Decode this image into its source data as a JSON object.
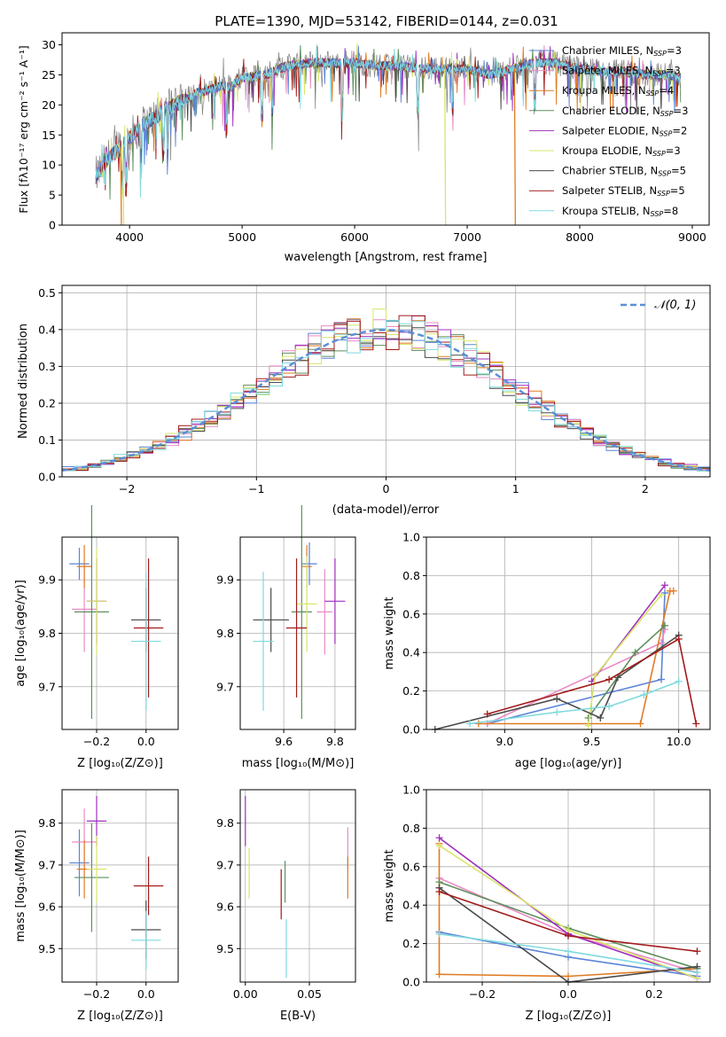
{
  "colors": {
    "chabrier_miles": "#5b84d6",
    "salpeter_miles": "#e98bc4",
    "kroupa_miles": "#e07b22",
    "chabrier_elodie": "#5e8f5e",
    "salpeter_elodie": "#a02fbf",
    "kroupa_elodie": "#d9e56a",
    "chabrier_stelib": "#4a4a4a",
    "salpeter_stelib": "#a31a1a",
    "kroupa_stelib": "#7fd9de"
  },
  "chart_data": [
    {
      "id": "spectrum",
      "type": "line",
      "title": "PLATE=1390, MJD=53142, FIBERID=0144, z=0.031",
      "xlabel": "wavelength [Angstrom, rest frame]",
      "ylabel": "Flux [fλ10⁻¹⁷ erg cm⁻² s⁻¹ A⁻¹]",
      "xlim": [
        3400,
        9150
      ],
      "ylim": [
        0,
        32
      ],
      "xticks": [
        "4000",
        "5000",
        "6000",
        "7000",
        "8000",
        "9000"
      ],
      "yticks": [
        "0",
        "5",
        "10",
        "15",
        "20",
        "25",
        "30"
      ],
      "legend_position": "top-right",
      "legend": [
        {
          "label": "Chabrier MILES, N",
          "sub": "SSP",
          "val": "=3",
          "color": "#5b84d6"
        },
        {
          "label": "Salpeter MILES, N",
          "sub": "SSP",
          "val": "=3",
          "color": "#e98bc4"
        },
        {
          "label": "Kroupa MILES, N",
          "sub": "SSP",
          "val": "=4",
          "color": "#e07b22"
        },
        {
          "label": "Chabrier ELODIE, N",
          "sub": "SSP",
          "val": "=3",
          "color": "#5e8f5e"
        },
        {
          "label": "Salpeter ELODIE, N",
          "sub": "SSP",
          "val": "=2",
          "color": "#a02fbf"
        },
        {
          "label": "Kroupa ELODIE, N",
          "sub": "SSP",
          "val": "=3",
          "color": "#d9e56a"
        },
        {
          "label": "Chabrier STELIB, N",
          "sub": "SSP",
          "val": "=5",
          "color": "#4a4a4a"
        },
        {
          "label": "Salpeter STELIB, N",
          "sub": "SSP",
          "val": "=5",
          "color": "#a31a1a"
        },
        {
          "label": "Kroupa STELIB, N",
          "sub": "SSP",
          "val": "=8",
          "color": "#7fd9de"
        }
      ],
      "continuum": [
        [
          3700,
          8
        ],
        [
          3800,
          11
        ],
        [
          3900,
          12.5
        ],
        [
          4000,
          14.5
        ],
        [
          4100,
          16.5
        ],
        [
          4200,
          17.5
        ],
        [
          4300,
          19
        ],
        [
          4400,
          20
        ],
        [
          4500,
          21
        ],
        [
          4600,
          22
        ],
        [
          4700,
          22.5
        ],
        [
          4800,
          23
        ],
        [
          4900,
          23
        ],
        [
          5000,
          24.5
        ],
        [
          5200,
          25
        ],
        [
          5400,
          26.5
        ],
        [
          5600,
          27
        ],
        [
          5800,
          27
        ],
        [
          6000,
          27
        ],
        [
          6200,
          26.5
        ],
        [
          6400,
          26.5
        ],
        [
          6600,
          26
        ],
        [
          6800,
          26
        ],
        [
          7000,
          26
        ],
        [
          7200,
          25
        ],
        [
          7400,
          26
        ],
        [
          7600,
          27
        ],
        [
          7800,
          27
        ],
        [
          8000,
          26
        ],
        [
          8200,
          25.5
        ],
        [
          8400,
          25.5
        ],
        [
          8600,
          25
        ],
        [
          8800,
          25
        ],
        [
          8900,
          24.5
        ]
      ],
      "drops": [
        [
          3920,
          "#e07b22"
        ],
        [
          3940,
          "#d9e56a"
        ],
        [
          6800,
          "#d9e56a"
        ],
        [
          7420,
          "#e07b22"
        ]
      ]
    },
    {
      "id": "residuals",
      "type": "step",
      "xlabel": "(data-model)/error",
      "ylabel": "Normed distribution",
      "xlim": [
        -2.5,
        2.5
      ],
      "ylim": [
        0,
        0.52
      ],
      "xticks": [
        "−2",
        "−1",
        "0",
        "1",
        "2"
      ],
      "yticks": [
        "0.0",
        "0.1",
        "0.2",
        "0.3",
        "0.4",
        "0.5"
      ],
      "legend_label": "𝒩(0, 1)",
      "legend_position": "top-right",
      "bin_width": 0.1,
      "gaussian": {
        "mu": 0,
        "sigma": 1
      }
    },
    {
      "id": "age-vs-z",
      "type": "errorbar",
      "xlabel": "Z [log₁₀(Z/Z⊙)]",
      "ylabel": "age  [log₁₀(age/yr)]",
      "xlim": [
        -0.34,
        0.13
      ],
      "ylim": [
        9.62,
        9.98
      ],
      "xticks": [
        -0.2,
        0.0
      ],
      "xtick_labels": [
        "−0.2",
        "0.0"
      ],
      "yticks": [
        9.7,
        9.8,
        9.9
      ],
      "ytick_labels": [
        "9.7",
        "9.8",
        "9.9"
      ],
      "points": [
        {
          "color": "#5b84d6",
          "x": -0.27,
          "xe": 0.04,
          "y": 9.93,
          "ye": 0.03
        },
        {
          "color": "#e98bc4",
          "x": -0.25,
          "xe": 0.05,
          "y": 9.845,
          "ye": 0.08
        },
        {
          "color": "#e07b22",
          "x": -0.25,
          "xe": 0.03,
          "y": 9.925,
          "ye": 0.04
        },
        {
          "color": "#5e8f5e",
          "x": -0.22,
          "xe": 0.07,
          "y": 9.84,
          "ye": 0.2
        },
        {
          "color": "#a02fbf",
          "x": -0.2,
          "xe": 0.04,
          "y": 9.86,
          "ye": 0.08
        },
        {
          "color": "#d9e56a",
          "x": -0.2,
          "xe": 0.04,
          "y": 9.86,
          "ye": 0.1
        },
        {
          "color": "#4a4a4a",
          "x": 0.0,
          "xe": 0.06,
          "y": 9.825,
          "ye": 0.06
        },
        {
          "color": "#a31a1a",
          "x": 0.01,
          "xe": 0.06,
          "y": 9.81,
          "ye": 0.13
        },
        {
          "color": "#7fd9de",
          "x": 0.0,
          "xe": 0.06,
          "y": 9.785,
          "ye": 0.13
        }
      ]
    },
    {
      "id": "age-vs-mass",
      "type": "errorbar",
      "xlabel": "mass [log₁₀(M/M⊙)]",
      "ylabel": "",
      "xlim": [
        9.43,
        9.88
      ],
      "ylim": [
        9.62,
        9.98
      ],
      "xticks": [
        9.6,
        9.8
      ],
      "xtick_labels": [
        "9.6",
        "9.8"
      ],
      "yticks": [
        9.7,
        9.8,
        9.9
      ],
      "ytick_labels": [
        "9.7",
        "9.8",
        "9.9"
      ],
      "points": [
        {
          "color": "#5b84d6",
          "x": 9.7,
          "xe": 0.03,
          "y": 9.93,
          "ye": 0.04
        },
        {
          "color": "#e98bc4",
          "x": 9.76,
          "xe": 0.03,
          "y": 9.84,
          "ye": 0.08
        },
        {
          "color": "#e07b22",
          "x": 9.69,
          "xe": 0.02,
          "y": 9.925,
          "ye": 0.04
        },
        {
          "color": "#5e8f5e",
          "x": 9.67,
          "xe": 0.04,
          "y": 9.84,
          "ye": 0.2
        },
        {
          "color": "#a02fbf",
          "x": 9.8,
          "xe": 0.04,
          "y": 9.86,
          "ye": 0.08
        },
        {
          "color": "#d9e56a",
          "x": 9.69,
          "xe": 0.04,
          "y": 9.855,
          "ye": 0.09
        },
        {
          "color": "#4a4a4a",
          "x": 9.55,
          "xe": 0.07,
          "y": 9.825,
          "ye": 0.06
        },
        {
          "color": "#a31a1a",
          "x": 9.65,
          "xe": 0.04,
          "y": 9.81,
          "ye": 0.13
        },
        {
          "color": "#7fd9de",
          "x": 9.52,
          "xe": 0.04,
          "y": 9.785,
          "ye": 0.13
        }
      ]
    },
    {
      "id": "weight-vs-age",
      "type": "line",
      "xlabel": "age  [log₁₀(age/yr)]",
      "ylabel": "mass weight",
      "xlim": [
        8.55,
        10.18
      ],
      "ylim": [
        0,
        1.0
      ],
      "xticks": [
        9.0,
        9.5,
        10.0
      ],
      "xtick_labels": [
        "9.0",
        "9.5",
        "10.0"
      ],
      "yticks": [
        0,
        0.2,
        0.4,
        0.6,
        0.8,
        1.0
      ],
      "ytick_labels": [
        "0.0",
        "0.2",
        "0.4",
        "0.6",
        "0.8",
        "1.0"
      ],
      "series": [
        {
          "color": "#5b84d6",
          "x": [
            8.9,
            9.9,
            9.92
          ],
          "y": [
            0.03,
            0.26,
            0.71
          ]
        },
        {
          "color": "#e98bc4",
          "x": [
            8.9,
            9.9,
            9.92
          ],
          "y": [
            0.03,
            0.45,
            0.52
          ]
        },
        {
          "color": "#e07b22",
          "x": [
            8.85,
            9.78,
            9.95,
            9.97
          ],
          "y": [
            0.03,
            0.03,
            0.72,
            0.72
          ]
        },
        {
          "color": "#5e8f5e",
          "x": [
            9.48,
            9.75,
            9.92
          ],
          "y": [
            0.06,
            0.4,
            0.54
          ]
        },
        {
          "color": "#a02fbf",
          "x": [
            9.5,
            9.92
          ],
          "y": [
            0.25,
            0.75
          ]
        },
        {
          "color": "#d9e56a",
          "x": [
            9.48,
            9.52,
            9.9
          ],
          "y": [
            0.02,
            0.28,
            0.7
          ]
        },
        {
          "color": "#4a4a4a",
          "x": [
            8.6,
            9.3,
            9.55,
            9.65,
            10.0
          ],
          "y": [
            0.0,
            0.16,
            0.06,
            0.27,
            0.49
          ]
        },
        {
          "color": "#a31a1a",
          "x": [
            8.9,
            9.6,
            10.0,
            10.1
          ],
          "y": [
            0.08,
            0.26,
            0.47,
            0.03
          ]
        },
        {
          "color": "#7fd9de",
          "x": [
            8.8,
            9.3,
            9.6,
            9.8,
            10.0
          ],
          "y": [
            0.03,
            0.09,
            0.12,
            0.18,
            0.25
          ]
        }
      ]
    },
    {
      "id": "mass-vs-z",
      "type": "errorbar",
      "xlabel": "Z [log₁₀(Z/Z⊙)]",
      "ylabel": "mass [log₁₀(M/M⊙)]",
      "xlim": [
        -0.34,
        0.13
      ],
      "ylim": [
        9.42,
        9.88
      ],
      "xticks": [
        -0.2,
        0.0
      ],
      "xtick_labels": [
        "−0.2",
        "0.0"
      ],
      "yticks": [
        9.5,
        9.6,
        9.7,
        9.8
      ],
      "ytick_labels": [
        "9.5",
        "9.6",
        "9.7",
        "9.8"
      ],
      "points": [
        {
          "color": "#5b84d6",
          "x": -0.27,
          "xe": 0.04,
          "y": 9.705,
          "ye": 0.08
        },
        {
          "color": "#e98bc4",
          "x": -0.25,
          "xe": 0.05,
          "y": 9.755,
          "ye": 0.08
        },
        {
          "color": "#e07b22",
          "x": -0.25,
          "xe": 0.03,
          "y": 9.69,
          "ye": 0.07
        },
        {
          "color": "#5e8f5e",
          "x": -0.22,
          "xe": 0.07,
          "y": 9.67,
          "ye": 0.13
        },
        {
          "color": "#a02fbf",
          "x": -0.2,
          "xe": 0.04,
          "y": 9.805,
          "ye": 0.06
        },
        {
          "color": "#d9e56a",
          "x": -0.2,
          "xe": 0.04,
          "y": 9.69,
          "ye": 0.08
        },
        {
          "color": "#4a4a4a",
          "x": 0.0,
          "xe": 0.06,
          "y": 9.545,
          "ye": 0.07
        },
        {
          "color": "#a31a1a",
          "x": 0.01,
          "xe": 0.06,
          "y": 9.65,
          "ye": 0.07
        },
        {
          "color": "#7fd9de",
          "x": 0.0,
          "xe": 0.06,
          "y": 9.52,
          "ye": 0.07
        }
      ]
    },
    {
      "id": "mass-vs-ebv",
      "type": "errorbar",
      "xlabel": "E(B-V)",
      "ylabel": "",
      "xlim": [
        -0.004,
        0.086
      ],
      "ylim": [
        9.42,
        9.88
      ],
      "xticks": [
        0.0,
        0.05
      ],
      "xtick_labels": [
        "0.00",
        "0.05"
      ],
      "yticks": [
        9.5,
        9.6,
        9.7,
        9.8
      ],
      "ytick_labels": [
        "9.5",
        "9.6",
        "9.7",
        "9.8"
      ],
      "points": [
        {
          "color": "#a02fbf",
          "x": 0.0,
          "xe": 0,
          "y": 9.805,
          "ye": 0.06
        },
        {
          "color": "#d9e56a",
          "x": 0.003,
          "xe": 0,
          "y": 9.68,
          "ye": 0.06
        },
        {
          "color": "#5e8f5e",
          "x": 0.031,
          "xe": 0,
          "y": 9.66,
          "ye": 0.05
        },
        {
          "color": "#a31a1a",
          "x": 0.028,
          "xe": 0,
          "y": 9.63,
          "ye": 0.06
        },
        {
          "color": "#7fd9de",
          "x": 0.032,
          "xe": 0,
          "y": 9.5,
          "ye": 0.07
        },
        {
          "color": "#e98bc4",
          "x": 0.08,
          "xe": 0,
          "y": 9.74,
          "ye": 0.05
        },
        {
          "color": "#e07b22",
          "x": 0.08,
          "xe": 0,
          "y": 9.67,
          "ye": 0.05
        }
      ]
    },
    {
      "id": "weight-vs-z",
      "type": "line",
      "xlabel": "Z [log₁₀(Z/Z⊙)]",
      "ylabel": "mass weight",
      "xlim": [
        -0.33,
        0.33
      ],
      "ylim": [
        0,
        1.0
      ],
      "xticks": [
        -0.2,
        0.0,
        0.2
      ],
      "xtick_labels": [
        "−0.2",
        "0.0",
        "0.2"
      ],
      "yticks": [
        0,
        0.2,
        0.4,
        0.6,
        0.8,
        1.0
      ],
      "ytick_labels": [
        "0.0",
        "0.2",
        "0.4",
        "0.6",
        "0.8",
        "1.0"
      ],
      "series": [
        {
          "color": "#5b84d6",
          "x": [
            -0.3,
            0.0,
            0.3
          ],
          "y": [
            0.26,
            0.13,
            0.03
          ]
        },
        {
          "color": "#e98bc4",
          "x": [
            -0.3,
            0.0,
            0.3
          ],
          "y": [
            0.54,
            0.25,
            0.05
          ]
        },
        {
          "color": "#e07b22",
          "x": [
            -0.3,
            -0.3,
            0.0,
            0.3
          ],
          "y": [
            0.72,
            0.04,
            0.03,
            0.07
          ]
        },
        {
          "color": "#5e8f5e",
          "x": [
            -0.3,
            0.0,
            0.3
          ],
          "y": [
            0.52,
            0.28,
            0.07
          ]
        },
        {
          "color": "#a02fbf",
          "x": [
            -0.3,
            0.0,
            0.3
          ],
          "y": [
            0.75,
            0.25,
            0.02
          ]
        },
        {
          "color": "#d9e56a",
          "x": [
            -0.3,
            0.0,
            0.3
          ],
          "y": [
            0.71,
            0.27,
            0.02
          ]
        },
        {
          "color": "#4a4a4a",
          "x": [
            -0.3,
            0.0,
            0.3
          ],
          "y": [
            0.49,
            0.0,
            0.08
          ]
        },
        {
          "color": "#a31a1a",
          "x": [
            -0.3,
            0.0,
            0.3
          ],
          "y": [
            0.47,
            0.24,
            0.16
          ]
        },
        {
          "color": "#7fd9de",
          "x": [
            -0.3,
            0.0,
            0.3
          ],
          "y": [
            0.25,
            0.16,
            0.05
          ]
        }
      ]
    }
  ]
}
